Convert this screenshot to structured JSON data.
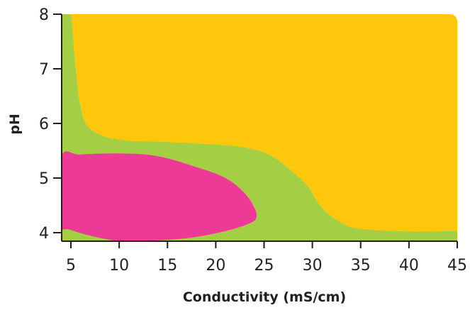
{
  "chart_data": {
    "type": "area",
    "xlabel": "Conductivity (mS/cm)",
    "ylabel": "pH",
    "xlim": [
      4,
      45
    ],
    "ylim": [
      3.85,
      8
    ],
    "x_ticks": [
      5,
      10,
      15,
      20,
      25,
      30,
      35,
      40,
      45
    ],
    "y_ticks": [
      4,
      5,
      6,
      7,
      8
    ],
    "grid": false,
    "regions": [
      {
        "fill": "#a4cf44",
        "role": "background region",
        "boundary": [
          [
            4,
            3.85
          ],
          [
            45,
            3.85
          ],
          [
            45,
            8
          ],
          [
            4,
            8
          ]
        ]
      },
      {
        "fill": "#fec70b",
        "role": "upper-right region",
        "boundary": [
          [
            5,
            8
          ],
          [
            44,
            8
          ],
          [
            45,
            7.9
          ],
          [
            45,
            4.03
          ],
          [
            40,
            4.02
          ],
          [
            35,
            4.07
          ],
          [
            33,
            4.18
          ],
          [
            31,
            4.45
          ],
          [
            29.5,
            4.85
          ],
          [
            28,
            5.1
          ],
          [
            26,
            5.38
          ],
          [
            24,
            5.52
          ],
          [
            21,
            5.6
          ],
          [
            15,
            5.66
          ],
          [
            10,
            5.7
          ],
          [
            7,
            5.9
          ],
          [
            6,
            6.3
          ],
          [
            5.5,
            7.0
          ],
          [
            5,
            8
          ]
        ]
      },
      {
        "fill": "#ee3a97",
        "role": "lower-left region",
        "boundary": [
          [
            4,
            5.38
          ],
          [
            6,
            5.43
          ],
          [
            10,
            5.45
          ],
          [
            14,
            5.4
          ],
          [
            18,
            5.2
          ],
          [
            21,
            5.0
          ],
          [
            23,
            4.72
          ],
          [
            24,
            4.45
          ],
          [
            24.2,
            4.28
          ],
          [
            23.5,
            4.17
          ],
          [
            21,
            4.03
          ],
          [
            17,
            3.9
          ],
          [
            12,
            3.85
          ],
          [
            9,
            3.87
          ],
          [
            5,
            4.05
          ],
          [
            4,
            4.2
          ]
        ]
      }
    ]
  }
}
